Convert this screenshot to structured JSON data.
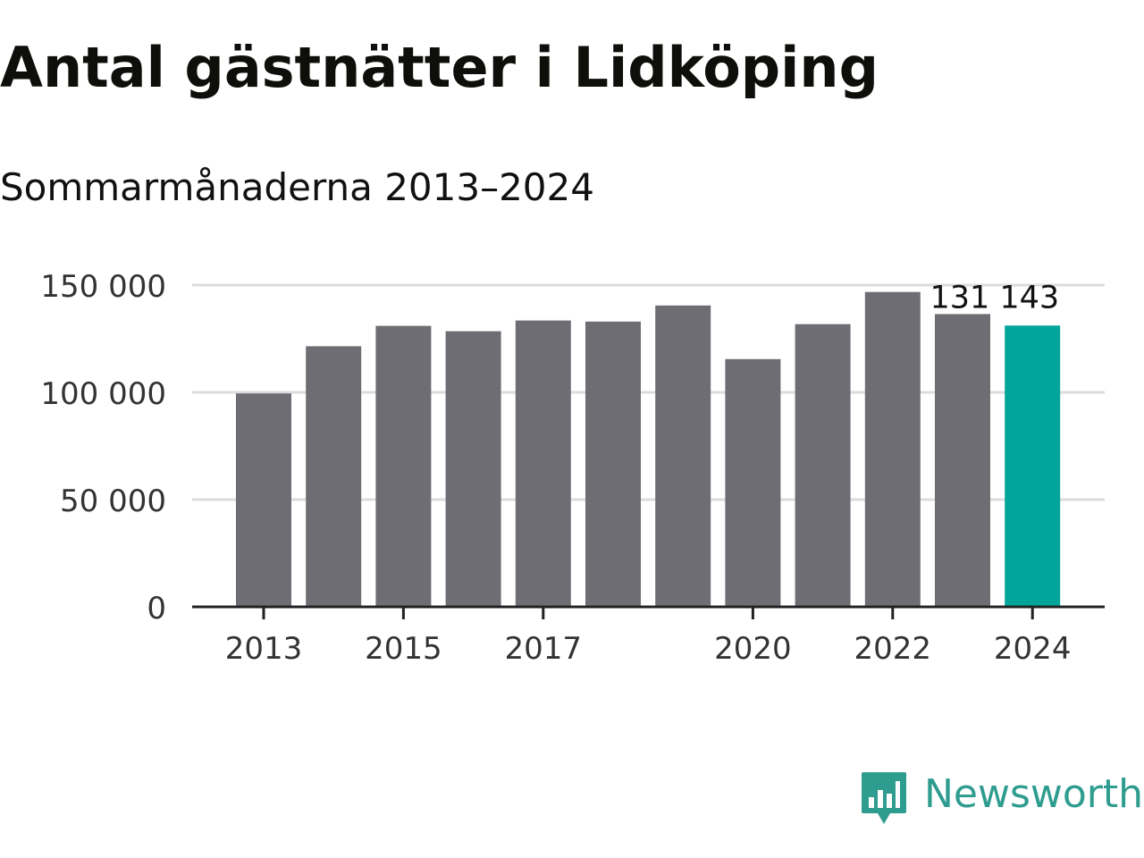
{
  "title": "Antal gästnätter i Lidköping",
  "subtitle": "Sommarmånaderna 2013–2024",
  "brand": {
    "name": "Newsworthy",
    "color": "#2e9c8f"
  },
  "colors": {
    "bar": "#6e6d73",
    "highlight": "#00a59a",
    "gridline": "#dcdcdc",
    "axis": "#222222",
    "text": "#111111"
  },
  "chart_data": {
    "type": "bar",
    "categories": [
      "2013",
      "2014",
      "2015",
      "2016",
      "2017",
      "2018",
      "2019",
      "2020",
      "2021",
      "2022",
      "2023",
      "2024"
    ],
    "values": [
      99500,
      121500,
      131000,
      128500,
      133500,
      133000,
      140500,
      115500,
      131800,
      146800,
      136500,
      131143
    ],
    "highlight_index": 11,
    "value_label": "131 143",
    "x_tick_labels": [
      "2013",
      "2015",
      "2017",
      "2020",
      "2022",
      "2024"
    ],
    "y_ticks": [
      0,
      50000,
      100000,
      150000
    ],
    "y_tick_labels": [
      "0",
      "50 000",
      "100 000",
      "150 000"
    ],
    "ylim": [
      0,
      150000
    ],
    "grid": true,
    "legend": "none",
    "xlabel": "",
    "ylabel": ""
  }
}
